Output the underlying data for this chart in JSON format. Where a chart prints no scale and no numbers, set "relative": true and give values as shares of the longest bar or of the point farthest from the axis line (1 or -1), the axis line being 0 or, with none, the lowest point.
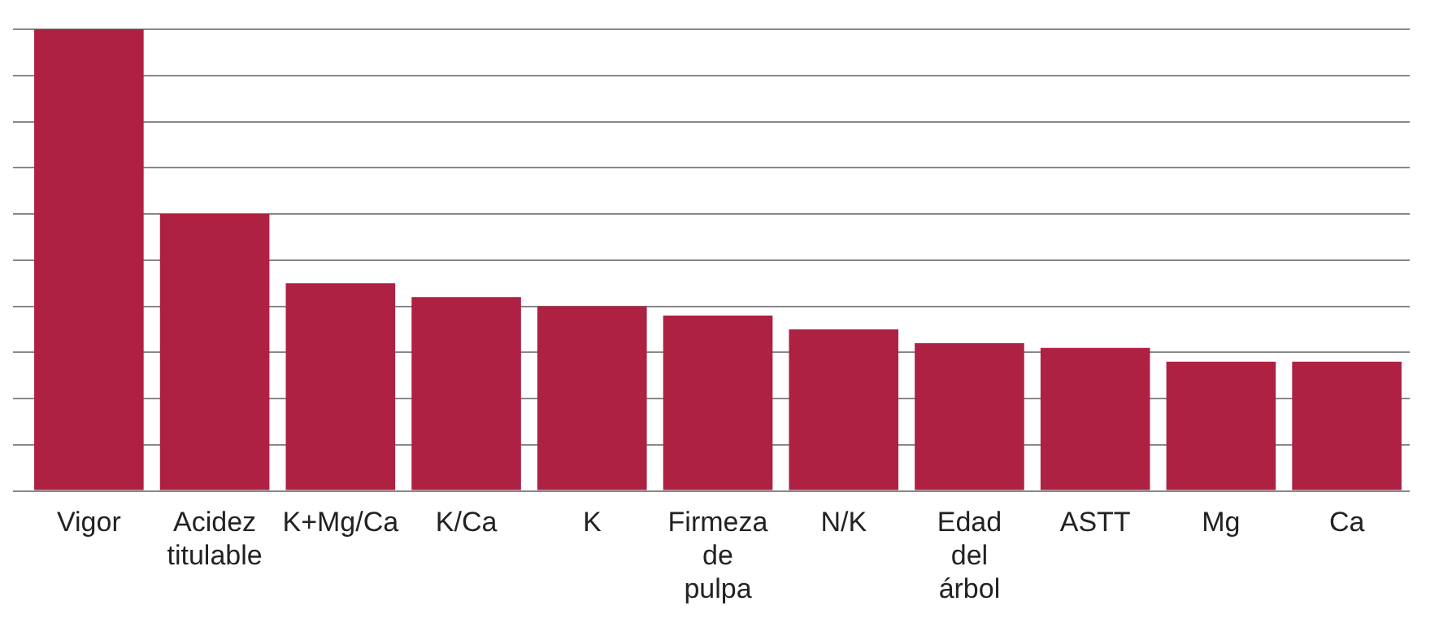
{
  "chart_data": {
    "type": "bar",
    "relative": true,
    "grid": "y",
    "color": "#ae2143",
    "categories": [
      "Vigor",
      "Acidez titulable",
      "K+Mg/Ca",
      "K/Ca",
      "K",
      "Firmeza de pulpa",
      "N/K",
      "Edad del árbol",
      "ASTT",
      "Mg",
      "Ca"
    ],
    "values": [
      1.0,
      0.6,
      0.45,
      0.42,
      0.4,
      0.38,
      0.35,
      0.32,
      0.31,
      0.28,
      0.28
    ]
  }
}
